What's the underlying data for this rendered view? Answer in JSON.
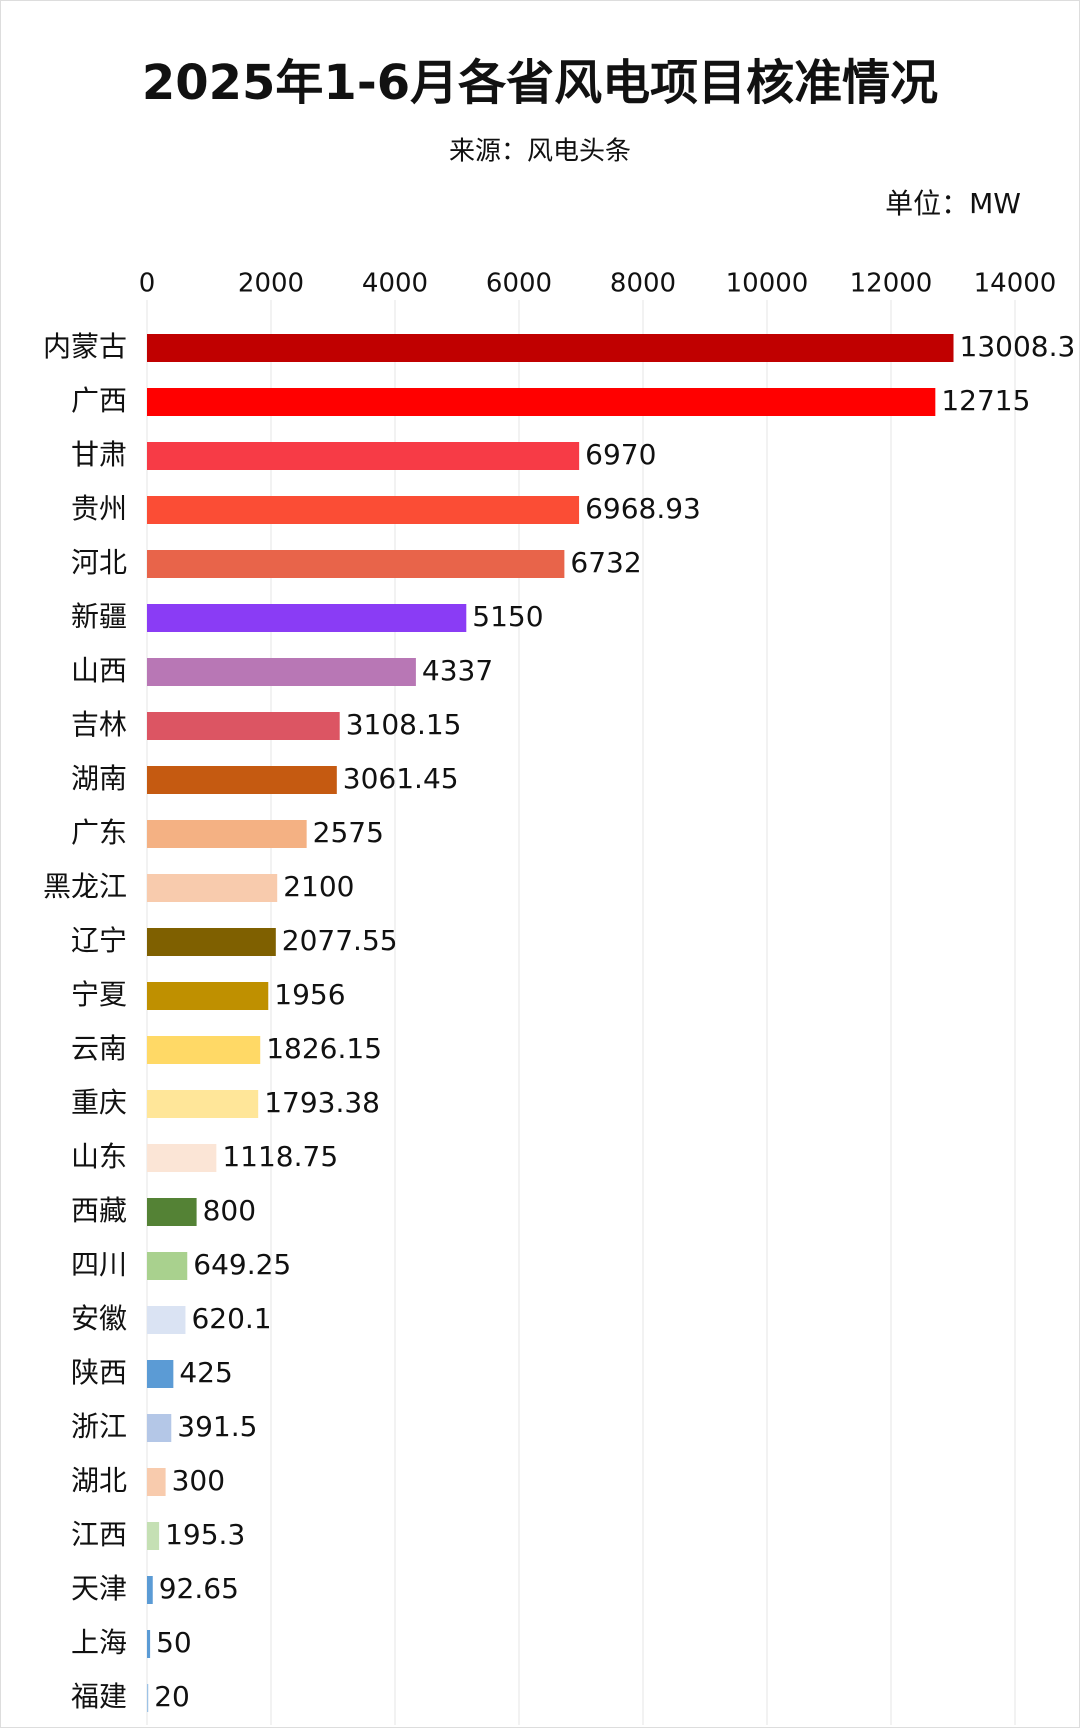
{
  "chart_data": {
    "type": "bar",
    "orientation": "horizontal",
    "title": "2025年1-6月各省风电项目核准情况",
    "subtitle": "来源：风电头条",
    "unit_label": "单位：MW",
    "categories": [
      "内蒙古",
      "广西",
      "甘肃",
      "贵州",
      "河北",
      "新疆",
      "山西",
      "吉林",
      "湖南",
      "广东",
      "黑龙江",
      "辽宁",
      "宁夏",
      "云南",
      "重庆",
      "山东",
      "西藏",
      "四川",
      "安徽",
      "陕西",
      "浙江",
      "湖北",
      "江西",
      "天津",
      "上海",
      "福建"
    ],
    "values": [
      13008.3,
      12715,
      6970,
      6968.93,
      6732,
      5150,
      4337,
      3108.15,
      3061.45,
      2575,
      2100,
      2077.55,
      1956,
      1826.15,
      1793.38,
      1118.75,
      800,
      649.25,
      620.1,
      425,
      391.5,
      300,
      195.3,
      92.65,
      50,
      20
    ],
    "colors": [
      "#c00000",
      "#ff0000",
      "#f73b46",
      "#fb4d35",
      "#e8644a",
      "#8a3cf5",
      "#b877b5",
      "#dc5563",
      "#c55a11",
      "#f4b183",
      "#f8cbad",
      "#7f6000",
      "#bf9000",
      "#ffd966",
      "#ffe699",
      "#fbe5d6",
      "#548235",
      "#a9d18e",
      "#dae3f3",
      "#5b9bd5",
      "#b4c7e7",
      "#f8cbad",
      "#c5e0b4",
      "#5b9bd5",
      "#5b9bd5",
      "#9dc3e6"
    ],
    "xlim": [
      0,
      14000
    ],
    "xticks": [
      0,
      2000,
      4000,
      6000,
      8000,
      10000,
      12000,
      14000
    ],
    "grid": true
  }
}
